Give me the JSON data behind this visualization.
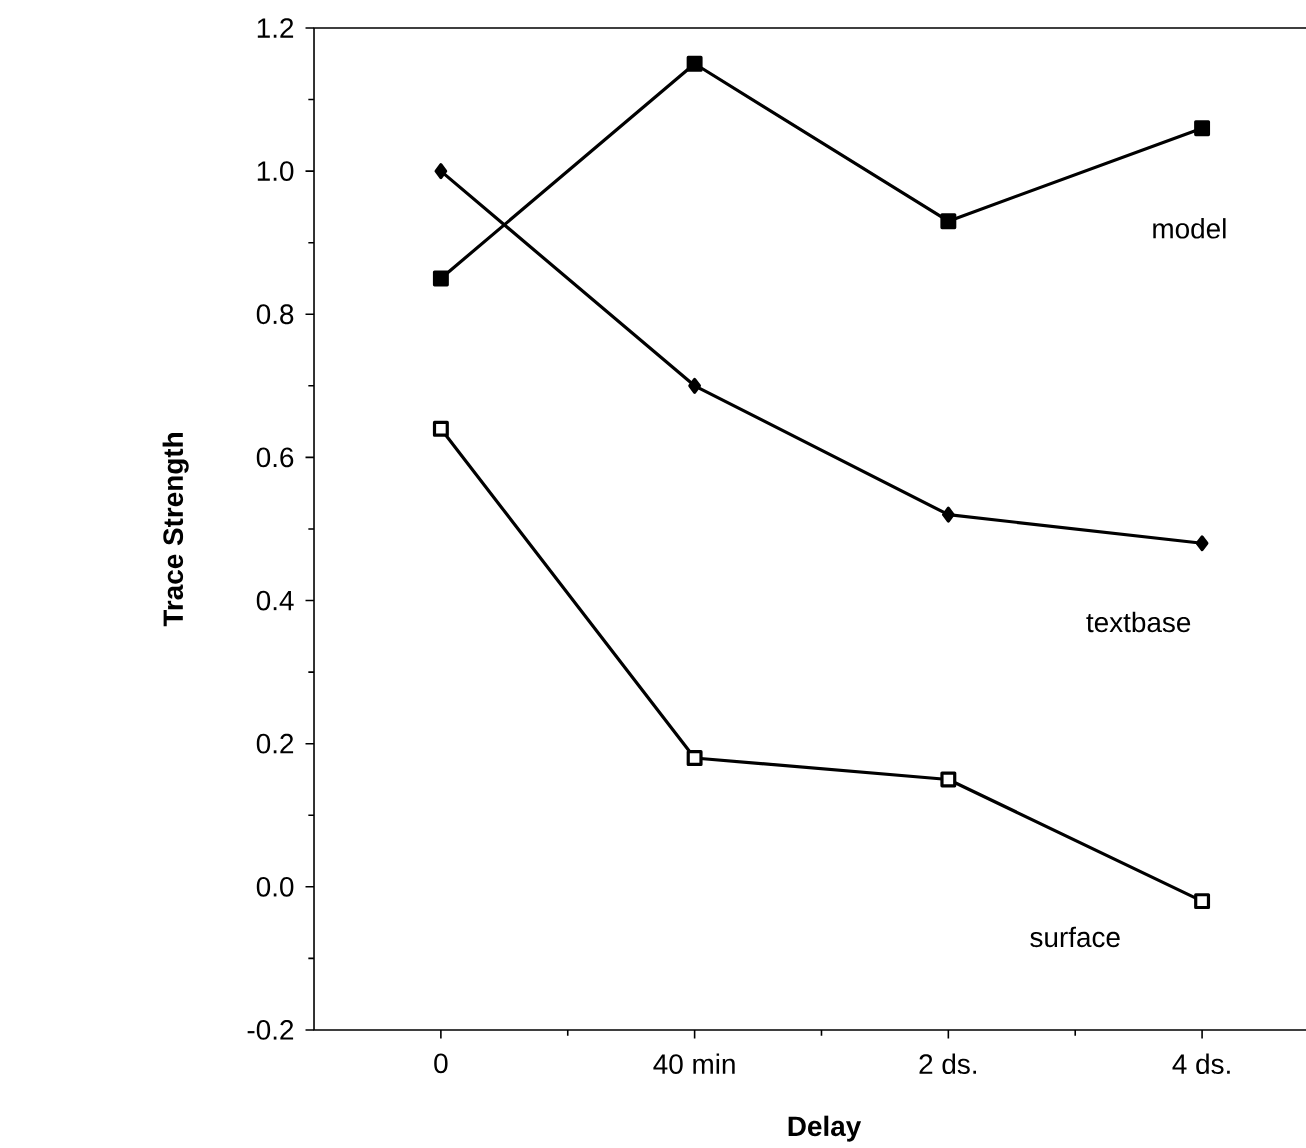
{
  "chart_data": {
    "type": "line",
    "xlabel": "Delay",
    "ylabel": "Trace Strength",
    "categories": [
      "0",
      "40 min",
      "2 ds.",
      "4 ds."
    ],
    "ylim": [
      -0.2,
      1.2
    ],
    "yticks": [
      {
        "value": -0.2,
        "label": "-0.2"
      },
      {
        "value": 0,
        "label": "0.0"
      },
      {
        "value": 0.2,
        "label": "0.2"
      },
      {
        "value": 0.4,
        "label": "0.4"
      },
      {
        "value": 0.6,
        "label": "0.6"
      },
      {
        "value": 0.8,
        "label": "0.8"
      },
      {
        "value": 1.0,
        "label": "1.0"
      },
      {
        "value": 1.2,
        "label": "1.2"
      }
    ],
    "series": [
      {
        "name": "model",
        "color": "#000000",
        "marker": "square",
        "values": [
          0.85,
          1.15,
          0.93,
          1.06
        ]
      },
      {
        "name": "textbase",
        "color": "#000000",
        "marker": "diamond",
        "values": [
          1.0,
          0.7,
          0.52,
          0.48
        ]
      },
      {
        "name": "surface",
        "color": "#000000",
        "marker": "square",
        "values": [
          0.64,
          0.18,
          0.15,
          -0.02
        ]
      }
    ],
    "grid": false,
    "legend": false,
    "line_style": "solid"
  }
}
